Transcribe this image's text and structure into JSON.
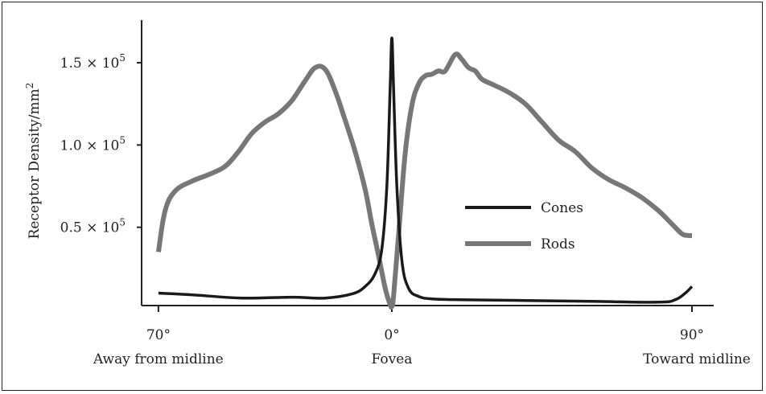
{
  "chart_data": {
    "type": "line",
    "ylabel": "Receptor Density/mm",
    "ylabel_superscript": "2",
    "y_ticks": [
      {
        "value": 50000,
        "mantissa": "0.5 × 10",
        "exp": "5"
      },
      {
        "value": 100000,
        "mantissa": "1.0 × 10",
        "exp": "5"
      },
      {
        "value": 150000,
        "mantissa": "1.5 × 10",
        "exp": "5"
      }
    ],
    "x_ticks": [
      {
        "value": -70,
        "label": "70°",
        "sublabel": "Away from midline"
      },
      {
        "value": 0,
        "label": "0°",
        "sublabel": "Fovea"
      },
      {
        "value": 90,
        "label": "90°",
        "sublabel": "Toward midline"
      }
    ],
    "xlim": [
      -80,
      105
    ],
    "ylim": [
      0,
      172000
    ],
    "legend_position": "right",
    "series": [
      {
        "name": "Cones",
        "color": "#1a1a1a",
        "x": [
          -70,
          -60,
          -45,
          -30,
          -20,
          -12,
          -8,
          -5,
          -3,
          -1.5,
          -0.5,
          0,
          0.5,
          1.5,
          3,
          5,
          8,
          12,
          20,
          40,
          60,
          80,
          85,
          88,
          90
        ],
        "values": [
          10000,
          9000,
          7000,
          7500,
          7000,
          9500,
          14000,
          22000,
          37000,
          75000,
          135000,
          165000,
          135000,
          75000,
          30000,
          13000,
          8000,
          6500,
          6000,
          5500,
          5000,
          4500,
          6000,
          10000,
          14000
        ]
      },
      {
        "name": "Rods",
        "color": "#777777",
        "x": [
          -70,
          -68,
          -65,
          -60,
          -55,
          -50,
          -46,
          -42,
          -38,
          -34,
          -30,
          -26,
          -23,
          -20,
          -17,
          -14,
          -11,
          -8,
          -6,
          -4,
          -2,
          -0.5,
          0,
          0.5,
          2,
          4,
          6,
          8,
          10,
          12,
          14,
          16,
          19,
          21,
          23,
          25,
          27,
          30,
          35,
          40,
          45,
          50,
          55,
          60,
          65,
          70,
          75,
          80,
          84,
          87,
          89,
          90
        ],
        "values": [
          35000,
          60000,
          72000,
          78000,
          82000,
          87000,
          96000,
          107000,
          114000,
          119000,
          127000,
          139000,
          147000,
          146000,
          133000,
          115000,
          96000,
          73000,
          52000,
          33000,
          13000,
          3000,
          2000,
          8000,
          45000,
          95000,
          124000,
          137000,
          142000,
          143000,
          145000,
          145000,
          155000,
          152000,
          147000,
          145000,
          140000,
          137000,
          132000,
          125000,
          114000,
          103000,
          96000,
          86000,
          79000,
          74000,
          68000,
          60000,
          52000,
          46000,
          45000,
          45000
        ]
      }
    ]
  }
}
